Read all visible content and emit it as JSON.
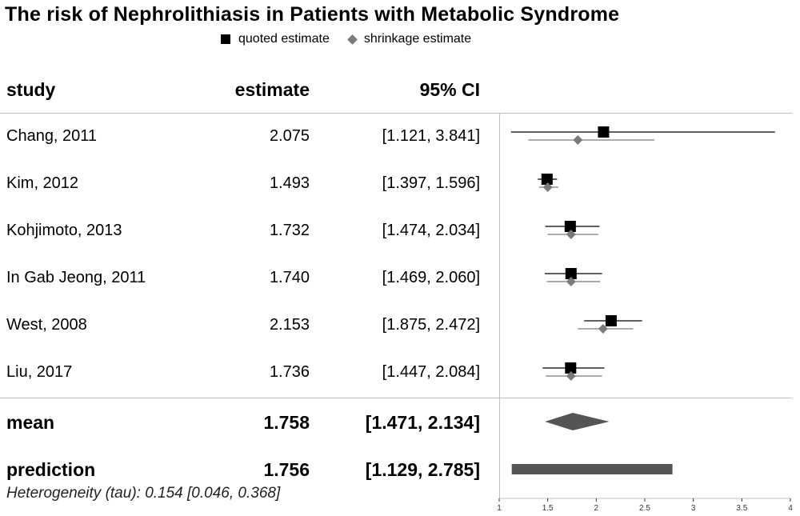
{
  "chart_data": {
    "type": "forest",
    "title": "The risk of Nephrolithiasis in Patients with Metabolic Syndrome",
    "legend": [
      {
        "name": "quoted estimate",
        "marker": "square",
        "color": "#000000"
      },
      {
        "name": "shrinkage estimate",
        "marker": "diamond",
        "color": "#7a7a7a"
      }
    ],
    "legend_position": "top",
    "columns": {
      "study": "study",
      "estimate": "estimate",
      "ci": "95% CI"
    },
    "studies": [
      {
        "study": "Chang, 2011",
        "estimate": "2.075",
        "ci": "[1.121, 3.841]",
        "quoted": [
          2.075,
          1.121,
          3.841
        ],
        "shrinkage": [
          1.81,
          1.3,
          2.6
        ]
      },
      {
        "study": "Kim, 2012",
        "estimate": "1.493",
        "ci": "[1.397, 1.596]",
        "quoted": [
          1.493,
          1.397,
          1.596
        ],
        "shrinkage": [
          1.5,
          1.41,
          1.61
        ]
      },
      {
        "study": "Kohjimoto, 2013",
        "estimate": "1.732",
        "ci": "[1.474, 2.034]",
        "quoted": [
          1.732,
          1.474,
          2.034
        ],
        "shrinkage": [
          1.74,
          1.5,
          2.02
        ]
      },
      {
        "study": "In Gab Jeong, 2011",
        "estimate": "1.740",
        "ci": "[1.469, 2.060]",
        "quoted": [
          1.74,
          1.469,
          2.06
        ],
        "shrinkage": [
          1.74,
          1.49,
          2.04
        ]
      },
      {
        "study": "West, 2008",
        "estimate": "2.153",
        "ci": "[1.875, 2.472]",
        "quoted": [
          2.153,
          1.875,
          2.472
        ],
        "shrinkage": [
          2.07,
          1.81,
          2.38
        ]
      },
      {
        "study": "Liu, 2017",
        "estimate": "1.736",
        "ci": "[1.447, 2.084]",
        "quoted": [
          1.736,
          1.447,
          2.084
        ],
        "shrinkage": [
          1.74,
          1.48,
          2.06
        ]
      }
    ],
    "mean": {
      "label": "mean",
      "estimate": "1.758",
      "ci": "[1.471, 2.134]",
      "value": [
        1.758,
        1.471,
        2.134
      ]
    },
    "prediction": {
      "label": "prediction",
      "estimate": "1.756",
      "ci": "[1.129, 2.785]",
      "value": [
        1.756,
        1.129,
        2.785
      ]
    },
    "heterogeneity": "Heterogeneity (tau): 0.154 [0.046, 0.368]",
    "x_axis": {
      "xlim": [
        1,
        4
      ],
      "ticks": [
        1,
        1.5,
        2,
        2.5,
        3,
        3.5,
        4
      ],
      "tick_labels": [
        "1",
        "1.5",
        "2",
        "2.5",
        "3",
        "3.5",
        "4"
      ]
    },
    "colors": {
      "quoted": "#000000",
      "shrinkage": "#7a7a7a",
      "summary": "#555555"
    }
  }
}
